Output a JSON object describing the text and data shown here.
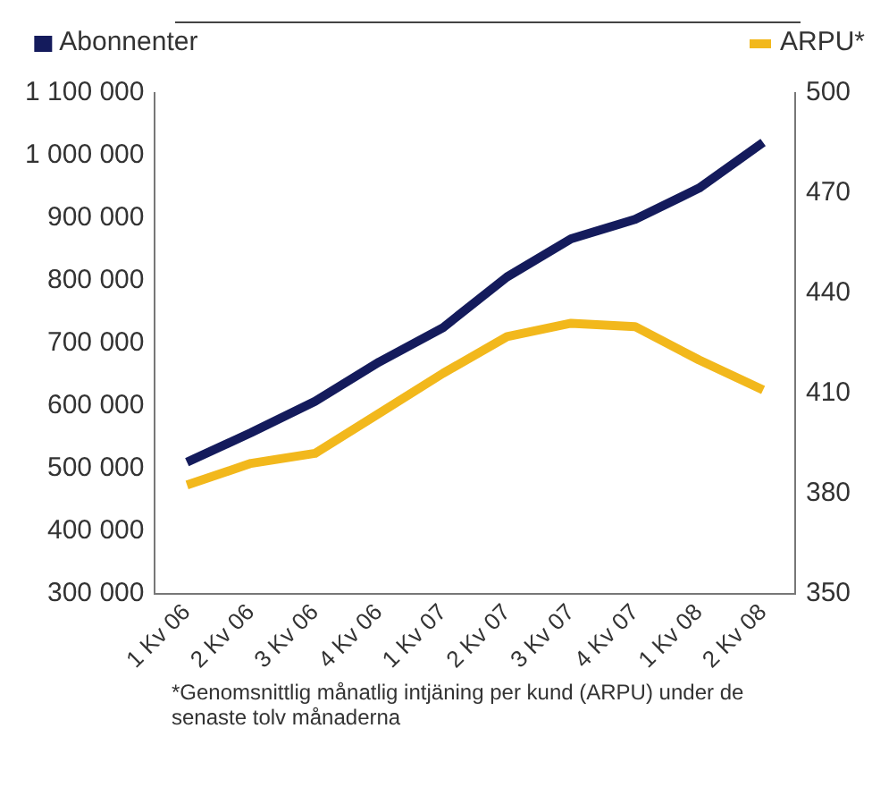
{
  "chart_data": {
    "type": "line",
    "categories": [
      "1 Kv 06",
      "2 Kv 06",
      "3 Kv 06",
      "4 Kv 06",
      "1 Kv 07",
      "2 Kv 07",
      "3 Kv 07",
      "4 Kv 07",
      "1 Kv 08",
      "2 Kv 08"
    ],
    "series": [
      {
        "name": "Abonnenter",
        "color": "#141b5c",
        "values": [
          510000,
          557000,
          607000,
          670000,
          725000,
          806000,
          867000,
          898000,
          948000,
          1021000
        ]
      },
      {
        "name": "ARPU*",
        "color": "#f2b81c",
        "axis": "y2",
        "values": [
          382.5,
          389,
          392,
          404,
          416,
          427,
          431,
          430,
          420,
          411
        ]
      }
    ],
    "ylim": [
      300000,
      1100000
    ],
    "yticks": [
      {
        "value": 300000,
        "label": "300 000"
      },
      {
        "value": 400000,
        "label": "400 000"
      },
      {
        "value": 500000,
        "label": "500 000"
      },
      {
        "value": 600000,
        "label": "600 000"
      },
      {
        "value": 700000,
        "label": "700 000"
      },
      {
        "value": 800000,
        "label": "800 000"
      },
      {
        "value": 900000,
        "label": "900 000"
      },
      {
        "value": 1000000,
        "label": "1 000 000"
      },
      {
        "value": 1100000,
        "label": "1 100 000"
      }
    ],
    "y2lim": [
      350,
      500
    ],
    "y2ticks": [
      350,
      380,
      410,
      440,
      470,
      500
    ],
    "grid": false,
    "legend": "top",
    "marker": "none",
    "line_style": "solid",
    "annotations": [
      "*Genomsnittlig månatlig intjäning per kund (ARPU) under de senaste tolv månaderna"
    ]
  }
}
